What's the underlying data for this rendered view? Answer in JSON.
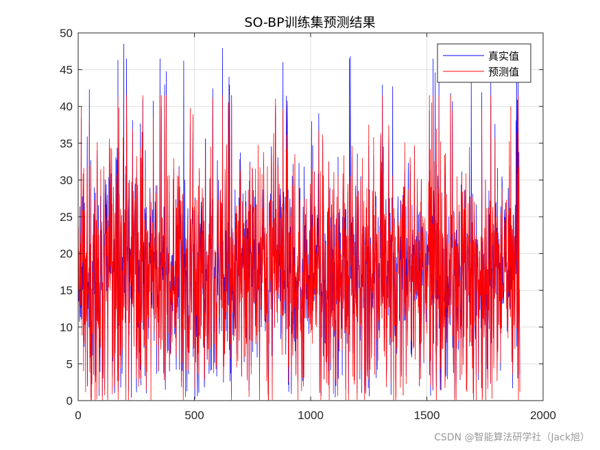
{
  "chart_data": {
    "type": "line",
    "title": "SO-BP训练集预测结果",
    "xlabel": "",
    "ylabel": "",
    "xlim": [
      0,
      2000
    ],
    "ylim": [
      0,
      50
    ],
    "xticks": [
      0,
      500,
      1000,
      1500,
      2000
    ],
    "yticks": [
      0,
      5,
      10,
      15,
      20,
      25,
      30,
      35,
      40,
      45,
      50
    ],
    "grid": true,
    "legend_position": "top-right",
    "n_points": 1900,
    "series": [
      {
        "name": "真实值",
        "color": "#0000ff",
        "stats": {
          "min": 0.2,
          "max": 48.6,
          "mean": 16.8
        },
        "peaks": [
          {
            "x": 195,
            "y": 48.5
          },
          {
            "x": 170,
            "y": 46.3
          },
          {
            "x": 620,
            "y": 47.9
          },
          {
            "x": 453,
            "y": 46.2
          },
          {
            "x": 1885,
            "y": 48.4
          },
          {
            "x": 1535,
            "y": 44.6
          },
          {
            "x": 1170,
            "y": 46.8
          },
          {
            "x": 880,
            "y": 46.0
          },
          {
            "x": 648,
            "y": 44.0
          },
          {
            "x": 1352,
            "y": 42.7
          },
          {
            "x": 1690,
            "y": 43.3
          },
          {
            "x": 47,
            "y": 42.3
          }
        ]
      },
      {
        "name": "预测值",
        "color": "#ff0000",
        "stats": {
          "min": 0.1,
          "max": 41.5,
          "mean": 16.9
        },
        "peaks": [
          {
            "x": 170,
            "y": 41.3
          },
          {
            "x": 645,
            "y": 40.5
          },
          {
            "x": 1860,
            "y": 40.0
          },
          {
            "x": 1520,
            "y": 40.5
          },
          {
            "x": 880,
            "y": 39.6
          },
          {
            "x": 47,
            "y": 38.0
          }
        ]
      }
    ]
  },
  "watermark": "CSDN @智能算法研学社（Jack旭）"
}
